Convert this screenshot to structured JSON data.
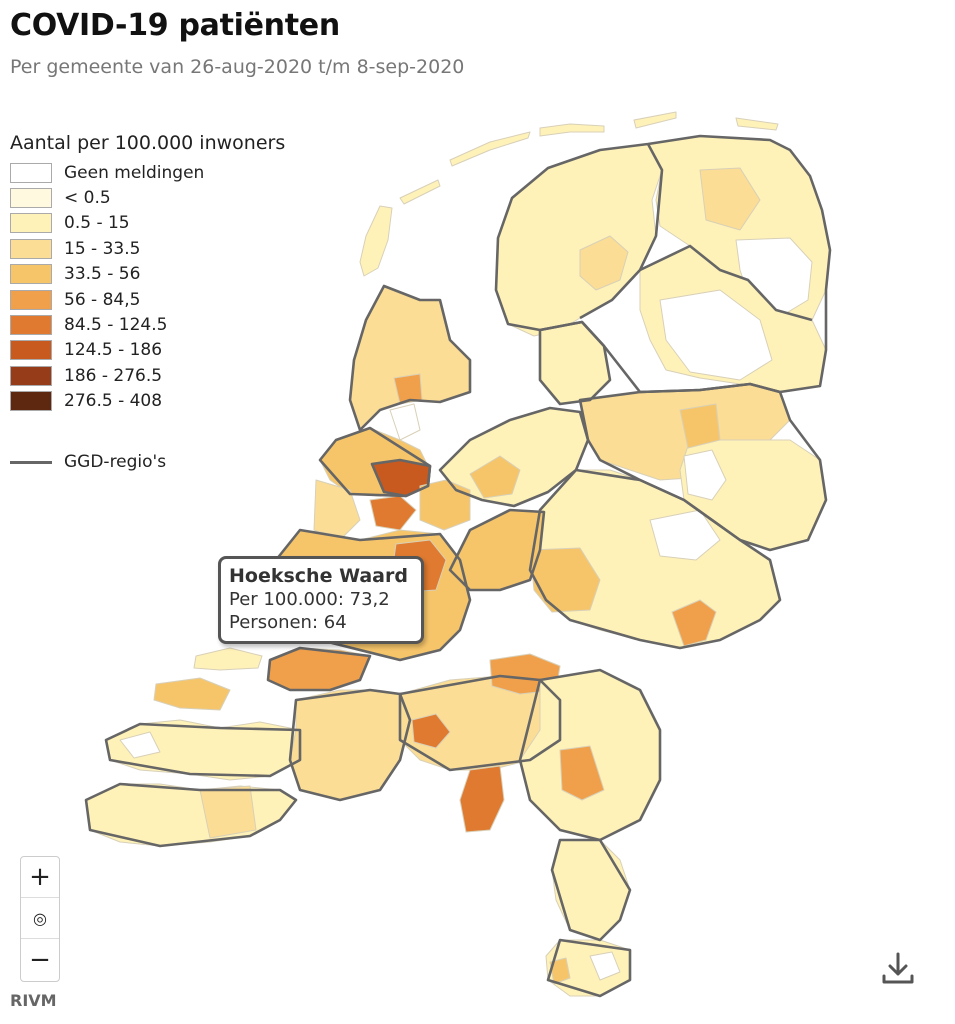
{
  "title": "COVID-19 patiënten",
  "subtitle": "Per gemeente van 26-aug-2020 t/m 8-sep-2020",
  "legend": {
    "title": "Aantal per 100.000 inwoners",
    "items": [
      {
        "label": "Geen meldingen",
        "color": "#ffffff"
      },
      {
        "label": "< 0.5",
        "color": "#fff9e0"
      },
      {
        "label": "0.5 - 15",
        "color": "#fff2b8"
      },
      {
        "label": "15 - 33.5",
        "color": "#fbdd95"
      },
      {
        "label": "33.5 - 56",
        "color": "#f6c56a"
      },
      {
        "label": "56 - 84,5",
        "color": "#f0a04b"
      },
      {
        "label": "84.5 - 124.5",
        "color": "#df7a30"
      },
      {
        "label": "124.5 - 186",
        "color": "#c85a1f"
      },
      {
        "label": "186 - 276.5",
        "color": "#963c18"
      },
      {
        "label": "276.5 - 408",
        "color": "#5e2710"
      }
    ],
    "region_label": "GGD-regio's"
  },
  "tooltip": {
    "name": "Hoeksche Waard",
    "per100k": "Per 100.000: 73,2",
    "persons": "Personen: 64"
  },
  "zoom": {
    "plus": "+",
    "reset": "◎",
    "minus": "−"
  },
  "source": "RIVM",
  "icons": {
    "download": "download-icon"
  }
}
